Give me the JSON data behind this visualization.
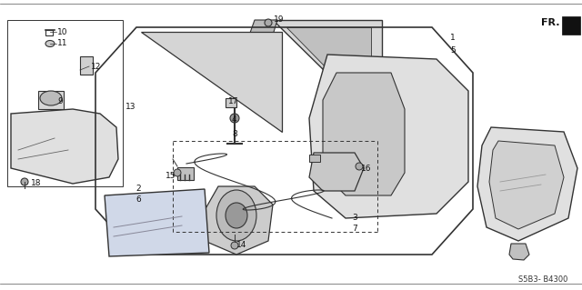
{
  "title": "",
  "diagram_id": "S5B3- B4300",
  "fr_label": "FR.",
  "background_color": "#ffffff",
  "line_color": "#333333",
  "label_color": "#111111",
  "fig_width": 6.4,
  "fig_height": 3.19,
  "dpi": 100
}
